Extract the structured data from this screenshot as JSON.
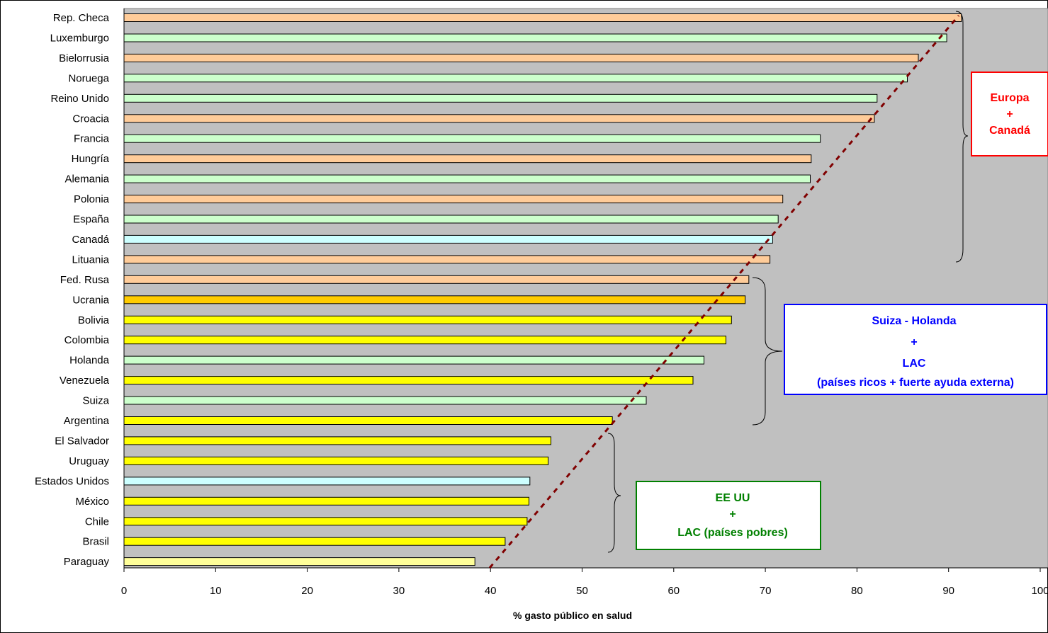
{
  "chart_data": {
    "type": "bar",
    "orientation": "horizontal",
    "title": "",
    "xlabel": "% gasto público en salud",
    "ylabel": "",
    "xlim": [
      0,
      100
    ],
    "xticks": [
      "0",
      "10",
      "20",
      "30",
      "40",
      "50",
      "60",
      "70",
      "80",
      "90",
      "100"
    ],
    "grid": false,
    "plot_background": "#c0c0c0",
    "categories": [
      "Rep. Checa",
      "Luxemburgo",
      "Bielorrusia",
      "Noruega",
      "Reino Unido",
      "Croacia",
      "Francia",
      "Hungría",
      "Alemania",
      "Polonia",
      "España",
      "Canadá",
      "Lituania",
      "Fed. Rusa",
      "Ucrania",
      "Bolivia",
      "Colombia",
      "Holanda",
      "Venezuela",
      "Suiza",
      "Argentina",
      "El Salvador",
      "Uruguay",
      "Estados Unidos",
      "México",
      "Chile",
      "Brasil",
      "Paraguay"
    ],
    "values": [
      91.4,
      89.8,
      86.7,
      85.5,
      82.2,
      81.9,
      76.0,
      75.0,
      74.9,
      71.9,
      71.4,
      70.8,
      70.5,
      68.2,
      67.8,
      66.3,
      65.7,
      63.3,
      62.1,
      57.0,
      53.3,
      46.6,
      46.3,
      44.3,
      44.2,
      44.0,
      41.6,
      38.3
    ],
    "colors": [
      "#ffcc99",
      "#ccffcc",
      "#ffcc99",
      "#ccffcc",
      "#ccffcc",
      "#ffcc99",
      "#ccffcc",
      "#ffcc99",
      "#ccffcc",
      "#ffcc99",
      "#ccffcc",
      "#ccffff",
      "#ffcc99",
      "#ffcc99",
      "#ffcc00",
      "#ffff00",
      "#ffff00",
      "#ccffcc",
      "#ffff00",
      "#ccffcc",
      "#ffff00",
      "#ffff00",
      "#ffff00",
      "#ccffff",
      "#ffff00",
      "#ffff00",
      "#ffff00",
      "#ffff99"
    ],
    "trend_line": {
      "style": "dashed",
      "color": "#800000"
    },
    "annotations": [
      {
        "id": "europa",
        "color": "#ff0000",
        "lines": [
          "Europa",
          "+",
          "Canadá"
        ]
      },
      {
        "id": "suiza",
        "color": "#0000ff",
        "lines": [
          "Suiza - Holanda",
          "+",
          "LAC",
          "(países ricos + fuerte ayuda externa)"
        ]
      },
      {
        "id": "eeuu",
        "color": "#008000",
        "lines": [
          "EE UU",
          "+",
          "LAC (países pobres)"
        ]
      }
    ]
  }
}
